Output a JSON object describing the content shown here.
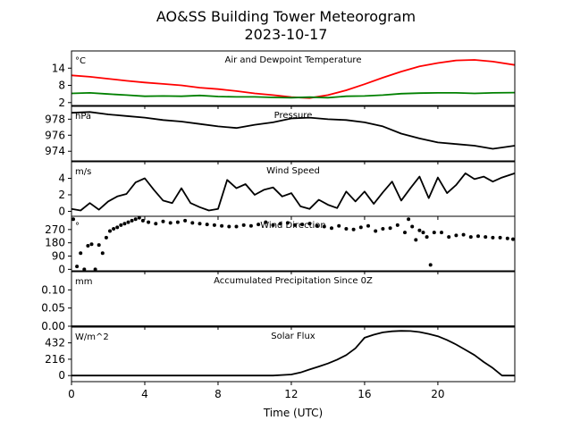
{
  "title_line1": "AO&SS Building Tower Meteorogram",
  "title_line2": "2023-10-17",
  "xlabel": "Time (UTC)",
  "x_ticks": [
    "0",
    "4",
    "8",
    "12",
    "16",
    "20"
  ],
  "chart_data": [
    {
      "type": "line",
      "title": "Air and Dewpoint Temperature",
      "unit": "°C",
      "xlim": [
        0,
        24.2
      ],
      "ylim": [
        1,
        20
      ],
      "y_ticks": [
        2,
        8,
        14
      ],
      "series": [
        {
          "color": "#ff0000",
          "x": [
            0,
            1,
            2,
            3,
            4,
            5,
            6,
            7,
            8,
            9,
            10,
            11,
            12,
            13,
            14,
            15,
            16,
            17,
            18,
            19,
            20,
            21,
            22,
            23,
            24.2
          ],
          "values": [
            11.5,
            11,
            10.3,
            9.6,
            9,
            8.5,
            8,
            7.2,
            6.7,
            6,
            5.2,
            4.6,
            3.9,
            3.6,
            4.6,
            6.3,
            8.4,
            10.7,
            12.8,
            14.6,
            15.8,
            16.7,
            16.9,
            16.3,
            15.1
          ]
        },
        {
          "color": "#008000",
          "x": [
            0,
            1,
            2,
            3,
            4,
            5,
            6,
            7,
            8,
            9,
            10,
            11,
            12,
            13,
            14,
            15,
            16,
            17,
            18,
            19,
            20,
            21,
            22,
            23,
            24.2
          ],
          "values": [
            5.2,
            5.4,
            5,
            4.6,
            4.2,
            4.3,
            4.2,
            4.5,
            4.1,
            4,
            4,
            3.8,
            3.7,
            3.9,
            3.7,
            4.2,
            4.3,
            4.6,
            5.1,
            5.3,
            5.4,
            5.4,
            5.2,
            5.4,
            5.5
          ]
        }
      ]
    },
    {
      "type": "line",
      "title": "Pressure",
      "unit": "hPa",
      "xlim": [
        0,
        24.2
      ],
      "ylim": [
        972.8,
        979.6
      ],
      "y_ticks": [
        974,
        976,
        978
      ],
      "series": [
        {
          "color": "#000000",
          "x": [
            0,
            1,
            2,
            3,
            4,
            5,
            6,
            7,
            8,
            9,
            10,
            11,
            12,
            13,
            14,
            15,
            16,
            17,
            18,
            19,
            20,
            21,
            22,
            23,
            24.2
          ],
          "values": [
            978.8,
            978.9,
            978.6,
            978.4,
            978.2,
            977.9,
            977.7,
            977.4,
            977.1,
            976.9,
            977.3,
            977.6,
            978.1,
            978.2,
            978.0,
            977.9,
            977.6,
            977.1,
            976.2,
            975.6,
            975.1,
            974.9,
            974.7,
            974.3,
            974.7
          ]
        }
      ]
    },
    {
      "type": "line",
      "title": "Wind Speed",
      "unit": "m/s",
      "xlim": [
        0,
        24.2
      ],
      "ylim": [
        -0.6,
        6.0
      ],
      "y_ticks": [
        0,
        2,
        4
      ],
      "series": [
        {
          "color": "#000000",
          "x": [
            0,
            0.5,
            1,
            1.5,
            2,
            2.5,
            3,
            3.5,
            4,
            4.5,
            5,
            5.5,
            6,
            6.5,
            7,
            7.5,
            8,
            8.5,
            9,
            9.5,
            10,
            10.5,
            11,
            11.5,
            12,
            12.5,
            13,
            13.5,
            14,
            14.5,
            15,
            15.5,
            16,
            16.5,
            17,
            17.5,
            18,
            18.5,
            19,
            19.5,
            20,
            20.5,
            21,
            21.5,
            22,
            22.5,
            23,
            23.5,
            24.2
          ],
          "values": [
            0.3,
            0.1,
            1.0,
            0.2,
            1.2,
            1.8,
            2.1,
            3.5,
            4.0,
            2.6,
            1.3,
            1.0,
            2.8,
            1.0,
            0.5,
            0.1,
            0.3,
            3.8,
            2.8,
            3.3,
            2.0,
            2.6,
            2.9,
            1.8,
            2.2,
            0.6,
            0.3,
            1.4,
            0.8,
            0.4,
            2.4,
            1.2,
            2.4,
            0.9,
            2.3,
            3.6,
            1.3,
            2.8,
            4.2,
            1.6,
            4.1,
            2.2,
            3.2,
            4.6,
            3.9,
            4.2,
            3.6,
            4.1,
            4.6
          ]
        }
      ]
    },
    {
      "type": "scatter",
      "title": "Wind Direction",
      "unit": "°",
      "xlim": [
        0,
        24.2
      ],
      "ylim": [
        -10,
        360
      ],
      "y_ticks": [
        0,
        90,
        180,
        270
      ],
      "series": [
        {
          "color": "#000000",
          "x": [
            0.1,
            0.3,
            0.5,
            0.7,
            0.9,
            1.1,
            1.3,
            1.5,
            1.7,
            1.9,
            2.1,
            2.3,
            2.5,
            2.7,
            2.9,
            3.1,
            3.3,
            3.5,
            3.7,
            3.9,
            4.2,
            4.6,
            5.0,
            5.4,
            5.8,
            6.2,
            6.6,
            7.0,
            7.4,
            7.8,
            8.2,
            8.6,
            9.0,
            9.4,
            9.8,
            10.2,
            10.6,
            11.0,
            11.4,
            11.8,
            12.2,
            12.6,
            13.0,
            13.4,
            13.8,
            14.2,
            14.6,
            15.0,
            15.4,
            15.8,
            16.2,
            16.6,
            17.0,
            17.4,
            17.8,
            18.2,
            18.4,
            18.6,
            18.8,
            19.0,
            19.2,
            19.4,
            19.6,
            19.8,
            20.2,
            20.6,
            21.0,
            21.4,
            21.8,
            22.2,
            22.6,
            23.0,
            23.4,
            23.8,
            24.1
          ],
          "values": [
            340,
            20,
            110,
            0,
            160,
            170,
            0,
            165,
            110,
            215,
            260,
            275,
            285,
            300,
            310,
            320,
            330,
            340,
            350,
            330,
            320,
            310,
            325,
            315,
            320,
            330,
            315,
            310,
            305,
            300,
            295,
            290,
            290,
            300,
            295,
            305,
            320,
            300,
            310,
            315,
            300,
            305,
            310,
            295,
            290,
            280,
            295,
            275,
            270,
            285,
            295,
            260,
            275,
            280,
            300,
            250,
            340,
            290,
            200,
            265,
            250,
            220,
            30,
            250,
            250,
            220,
            230,
            235,
            220,
            225,
            220,
            215,
            215,
            210,
            205
          ]
        }
      ]
    },
    {
      "type": "line",
      "title": "Accumulated Precipitation Since 0Z",
      "unit": "mm",
      "xlim": [
        0,
        24.2
      ],
      "ylim": [
        0,
        0.15
      ],
      "y_ticks": [
        "0.00",
        "0.05",
        "0.10"
      ],
      "series": [
        {
          "color": "#000000",
          "x": [
            0,
            24.2
          ],
          "values": [
            0,
            0
          ]
        }
      ]
    },
    {
      "type": "line",
      "title": "Solar Flux",
      "unit": "W/m^2",
      "xlim": [
        0,
        24.2
      ],
      "ylim": [
        -80,
        640
      ],
      "y_ticks": [
        0,
        216,
        432
      ],
      "series": [
        {
          "color": "#000000",
          "x": [
            0,
            11,
            12,
            12.5,
            13,
            13.5,
            14,
            14.5,
            15,
            15.5,
            16,
            16.5,
            17,
            17.5,
            18,
            18.5,
            19,
            19.5,
            20,
            20.5,
            21,
            21.5,
            22,
            22.5,
            23,
            23.5,
            24.2
          ],
          "values": [
            0,
            0,
            15,
            40,
            80,
            120,
            160,
            210,
            270,
            360,
            500,
            540,
            570,
            585,
            590,
            588,
            575,
            550,
            520,
            470,
            410,
            340,
            270,
            180,
            100,
            0,
            0
          ]
        }
      ]
    }
  ]
}
